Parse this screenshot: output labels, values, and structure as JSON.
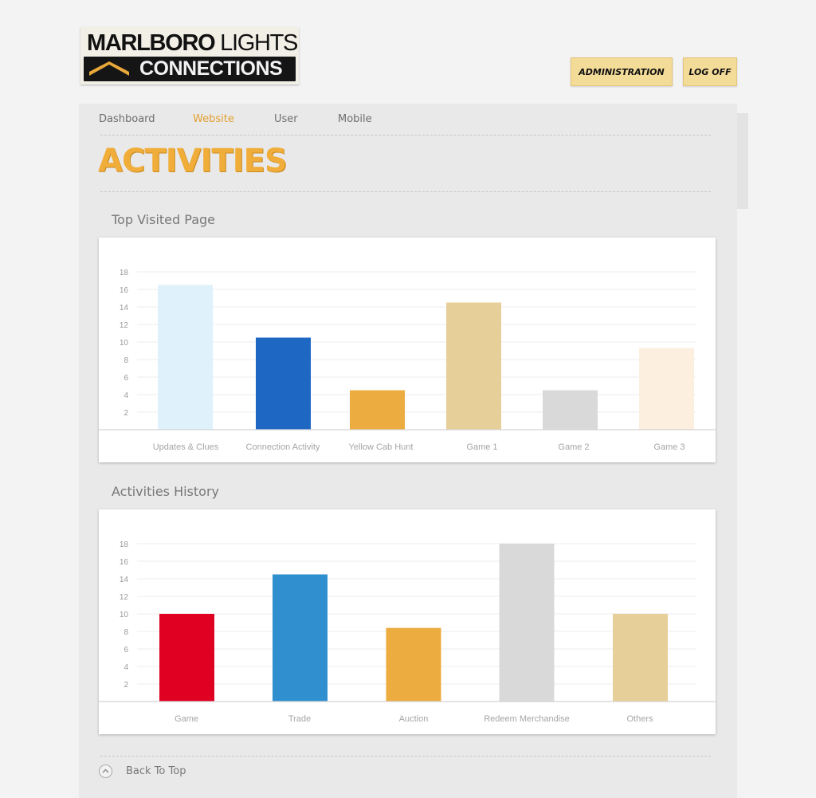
{
  "header": {
    "logo": {
      "line1_bold": "MARLBORO",
      "line1_light": "LIGHTS",
      "line2": "CONNECTIONS"
    },
    "buttons": {
      "administration": "ADMINISTRATION",
      "log_off": "LOG OFF"
    }
  },
  "nav": {
    "items": [
      {
        "label": "Dashboard",
        "active": false
      },
      {
        "label": "Website",
        "active": true
      },
      {
        "label": "User",
        "active": false
      },
      {
        "label": "Mobile",
        "active": false
      }
    ]
  },
  "page": {
    "title": "ACTIVITIES"
  },
  "sections": {
    "top_visited": "Top Visited Page",
    "history": "Activities History"
  },
  "footer": {
    "back_to_top": "Back To Top"
  },
  "colors": {
    "accent": "#f0ad3a",
    "nav_active": "#e3a02f"
  },
  "chart_data": [
    {
      "type": "bar",
      "categories": [
        "Updates & Clues",
        "Connection Activity",
        "Yellow Cab Hunt",
        "Game 1",
        "Game 2",
        "Game 3"
      ],
      "values": [
        16.5,
        10.5,
        4.5,
        14.5,
        4.5,
        9.3
      ],
      "colors": [
        "#dff1fa",
        "#1e68c3",
        "#ecac40",
        "#e6cf98",
        "#d9d9d9",
        "#fdefdf"
      ],
      "yticks": [
        2,
        4,
        6,
        8,
        10,
        12,
        14,
        16,
        18
      ],
      "ylim": [
        0,
        18
      ],
      "grid": true
    },
    {
      "type": "bar",
      "categories": [
        "Game",
        "Trade",
        "Auction",
        "Redeem Merchandise",
        "Others"
      ],
      "values": [
        10,
        14.5,
        8.4,
        18,
        10
      ],
      "colors": [
        "#e00022",
        "#3090cf",
        "#ecac40",
        "#d9d9d9",
        "#e6cf98"
      ],
      "yticks": [
        2,
        4,
        6,
        8,
        10,
        12,
        14,
        16,
        18
      ],
      "ylim": [
        0,
        18
      ],
      "grid": true
    }
  ]
}
